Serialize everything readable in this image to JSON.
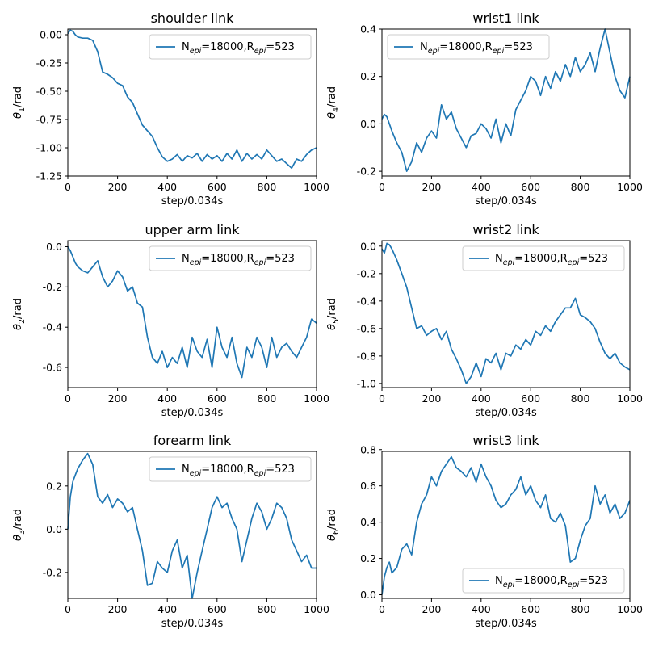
{
  "figure": {
    "background": "#ffffff",
    "line_color": "#1f77b4"
  },
  "chart_data": [
    {
      "type": "line",
      "title": "shoulder link",
      "xlabel": "step/0.034s",
      "ylabel": {
        "base": "θ",
        "sub": "1",
        "suffix": "/rad"
      },
      "xlim": [
        0,
        1000
      ],
      "ylim": [
        -1.25,
        0.05
      ],
      "xticks": [
        0,
        200,
        400,
        600,
        800,
        1000
      ],
      "yticks": [
        0.0,
        -0.25,
        -0.5,
        -0.75,
        -1.0,
        -1.25
      ],
      "ytick_labels": [
        "0.00",
        "-0.25",
        "-0.50",
        "-0.75",
        "-1.00",
        "-1.25"
      ],
      "legend": {
        "location": "upper-right",
        "label": {
          "n": "N",
          "n_sub": "epi",
          "n_val": "=18000,",
          "r": "R",
          "r_sub": "epi",
          "r_val": "=523"
        }
      },
      "series": [
        {
          "label": "N_epi=18000,R_epi=523",
          "color": "#1f77b4",
          "x": [
            0,
            10,
            20,
            30,
            40,
            60,
            80,
            100,
            120,
            140,
            160,
            180,
            200,
            220,
            240,
            260,
            280,
            300,
            320,
            340,
            360,
            380,
            400,
            420,
            440,
            460,
            480,
            500,
            520,
            540,
            560,
            580,
            600,
            620,
            640,
            660,
            680,
            700,
            720,
            740,
            760,
            780,
            800,
            820,
            840,
            860,
            880,
            900,
            920,
            940,
            960,
            980,
            1000
          ],
          "y": [
            0.01,
            0.04,
            0.03,
            0.0,
            -0.02,
            -0.03,
            -0.03,
            -0.05,
            -0.15,
            -0.33,
            -0.35,
            -0.38,
            -0.43,
            -0.45,
            -0.55,
            -0.6,
            -0.7,
            -0.8,
            -0.85,
            -0.9,
            -1.0,
            -1.08,
            -1.12,
            -1.1,
            -1.06,
            -1.12,
            -1.07,
            -1.09,
            -1.05,
            -1.12,
            -1.06,
            -1.1,
            -1.07,
            -1.12,
            -1.05,
            -1.1,
            -1.02,
            -1.12,
            -1.05,
            -1.1,
            -1.06,
            -1.1,
            -1.02,
            -1.07,
            -1.12,
            -1.1,
            -1.14,
            -1.18,
            -1.1,
            -1.12,
            -1.06,
            -1.02,
            -1.0
          ]
        }
      ]
    },
    {
      "type": "line",
      "title": "wrist1 link",
      "xlabel": "step/0.034s",
      "ylabel": {
        "base": "θ",
        "sub": "4",
        "suffix": "/rad"
      },
      "xlim": [
        0,
        1000
      ],
      "ylim": [
        -0.22,
        0.4
      ],
      "xticks": [
        0,
        200,
        400,
        600,
        800,
        1000
      ],
      "yticks": [
        0.4,
        0.2,
        0.0,
        -0.2
      ],
      "ytick_labels": [
        "0.4",
        "0.2",
        "0.0",
        "-0.2"
      ],
      "legend": {
        "location": "upper-left",
        "label": {
          "n": "N",
          "n_sub": "epi",
          "n_val": "=18000,",
          "r": "R",
          "r_sub": "epi",
          "r_val": "=523"
        }
      },
      "series": [
        {
          "label": "N_epi=18000,R_epi=523",
          "color": "#1f77b4",
          "x": [
            0,
            10,
            20,
            30,
            40,
            60,
            80,
            100,
            120,
            140,
            160,
            180,
            200,
            220,
            240,
            260,
            280,
            300,
            320,
            340,
            360,
            380,
            400,
            420,
            440,
            460,
            480,
            500,
            520,
            540,
            560,
            580,
            600,
            620,
            640,
            660,
            680,
            700,
            720,
            740,
            760,
            780,
            800,
            820,
            840,
            860,
            880,
            900,
            920,
            940,
            960,
            980,
            1000
          ],
          "y": [
            0.02,
            0.04,
            0.03,
            0.0,
            -0.03,
            -0.08,
            -0.12,
            -0.2,
            -0.16,
            -0.08,
            -0.12,
            -0.06,
            -0.03,
            -0.06,
            0.08,
            0.02,
            0.05,
            -0.02,
            -0.06,
            -0.1,
            -0.05,
            -0.04,
            0.0,
            -0.02,
            -0.06,
            0.02,
            -0.08,
            0.0,
            -0.05,
            0.06,
            0.1,
            0.14,
            0.2,
            0.18,
            0.12,
            0.2,
            0.15,
            0.22,
            0.18,
            0.25,
            0.2,
            0.28,
            0.22,
            0.25,
            0.3,
            0.22,
            0.32,
            0.4,
            0.3,
            0.2,
            0.14,
            0.11,
            0.2
          ]
        }
      ]
    },
    {
      "type": "line",
      "title": "upper arm link",
      "xlabel": "step/0.034s",
      "ylabel": {
        "base": "θ",
        "sub": "2",
        "suffix": "/rad"
      },
      "xlim": [
        0,
        1000
      ],
      "ylim": [
        -0.7,
        0.03
      ],
      "xticks": [
        0,
        200,
        400,
        600,
        800,
        1000
      ],
      "yticks": [
        0.0,
        -0.2,
        -0.4,
        -0.6
      ],
      "ytick_labels": [
        "0.0",
        "-0.2",
        "-0.4",
        "-0.6"
      ],
      "legend": {
        "location": "upper-right",
        "label": {
          "n": "N",
          "n_sub": "epi",
          "n_val": "=18000,",
          "r": "R",
          "r_sub": "epi",
          "r_val": "=523"
        }
      },
      "series": [
        {
          "label": "N_epi=18000,R_epi=523",
          "color": "#1f77b4",
          "x": [
            0,
            10,
            20,
            30,
            40,
            60,
            80,
            100,
            120,
            140,
            160,
            180,
            200,
            220,
            240,
            260,
            280,
            300,
            320,
            340,
            360,
            380,
            400,
            420,
            440,
            460,
            480,
            500,
            520,
            540,
            560,
            580,
            600,
            620,
            640,
            660,
            680,
            700,
            720,
            740,
            760,
            780,
            800,
            820,
            840,
            860,
            880,
            900,
            920,
            940,
            960,
            980,
            1000
          ],
          "y": [
            0.0,
            -0.02,
            -0.05,
            -0.08,
            -0.1,
            -0.12,
            -0.13,
            -0.1,
            -0.07,
            -0.15,
            -0.2,
            -0.17,
            -0.12,
            -0.15,
            -0.22,
            -0.2,
            -0.28,
            -0.3,
            -0.45,
            -0.55,
            -0.58,
            -0.52,
            -0.6,
            -0.55,
            -0.58,
            -0.5,
            -0.6,
            -0.45,
            -0.52,
            -0.55,
            -0.46,
            -0.6,
            -0.4,
            -0.5,
            -0.55,
            -0.45,
            -0.58,
            -0.65,
            -0.5,
            -0.55,
            -0.45,
            -0.5,
            -0.6,
            -0.45,
            -0.55,
            -0.5,
            -0.48,
            -0.52,
            -0.55,
            -0.5,
            -0.45,
            -0.36,
            -0.38
          ]
        }
      ]
    },
    {
      "type": "line",
      "title": "wrist2 link",
      "xlabel": "step/0.034s",
      "ylabel": {
        "base": "θ",
        "sub": "5",
        "suffix": "/rad"
      },
      "xlim": [
        0,
        1000
      ],
      "ylim": [
        -1.03,
        0.04
      ],
      "xticks": [
        0,
        200,
        400,
        600,
        800,
        1000
      ],
      "yticks": [
        0.0,
        -0.2,
        -0.4,
        -0.6,
        -0.8,
        -1.0
      ],
      "ytick_labels": [
        "0.0",
        "-0.2",
        "-0.4",
        "-0.6",
        "-0.8",
        "-1.0"
      ],
      "legend": {
        "location": "upper-right",
        "label": {
          "n": "N",
          "n_sub": "epi",
          "n_val": "=18000,",
          "r": "R",
          "r_sub": "epi",
          "r_val": "=523"
        }
      },
      "series": [
        {
          "label": "N_epi=18000,R_epi=523",
          "color": "#1f77b4",
          "x": [
            0,
            10,
            20,
            30,
            40,
            60,
            80,
            100,
            120,
            140,
            160,
            180,
            200,
            220,
            240,
            260,
            280,
            300,
            320,
            340,
            360,
            380,
            400,
            420,
            440,
            460,
            480,
            500,
            520,
            540,
            560,
            580,
            600,
            620,
            640,
            660,
            680,
            700,
            720,
            740,
            760,
            780,
            800,
            820,
            840,
            860,
            880,
            900,
            920,
            940,
            960,
            980,
            1000
          ],
          "y": [
            -0.02,
            -0.05,
            0.02,
            0.01,
            -0.02,
            -0.1,
            -0.2,
            -0.3,
            -0.45,
            -0.6,
            -0.58,
            -0.65,
            -0.62,
            -0.6,
            -0.68,
            -0.62,
            -0.75,
            -0.82,
            -0.9,
            -1.0,
            -0.95,
            -0.85,
            -0.95,
            -0.82,
            -0.85,
            -0.78,
            -0.9,
            -0.78,
            -0.8,
            -0.72,
            -0.75,
            -0.68,
            -0.72,
            -0.62,
            -0.65,
            -0.58,
            -0.62,
            -0.55,
            -0.5,
            -0.45,
            -0.45,
            -0.38,
            -0.5,
            -0.52,
            -0.55,
            -0.6,
            -0.7,
            -0.78,
            -0.82,
            -0.78,
            -0.85,
            -0.88,
            -0.9
          ]
        }
      ]
    },
    {
      "type": "line",
      "title": "forearm link",
      "xlabel": "step/0.034s",
      "ylabel": {
        "base": "θ",
        "sub": "3",
        "suffix": "/rad"
      },
      "xlim": [
        0,
        1000
      ],
      "ylim": [
        -0.32,
        0.36
      ],
      "xticks": [
        0,
        200,
        400,
        600,
        800,
        1000
      ],
      "yticks": [
        0.2,
        0.0,
        -0.2
      ],
      "ytick_labels": [
        "0.2",
        "0.0",
        "-0.2"
      ],
      "legend": {
        "location": "upper-right",
        "label": {
          "n": "N",
          "n_sub": "epi",
          "n_val": "=18000,",
          "r": "R",
          "r_sub": "epi",
          "r_val": "=523"
        }
      },
      "series": [
        {
          "label": "N_epi=18000,R_epi=523",
          "color": "#1f77b4",
          "x": [
            0,
            10,
            20,
            30,
            40,
            60,
            80,
            100,
            120,
            140,
            160,
            180,
            200,
            220,
            240,
            260,
            280,
            300,
            320,
            340,
            360,
            380,
            400,
            420,
            440,
            460,
            480,
            500,
            520,
            540,
            560,
            580,
            600,
            620,
            640,
            660,
            680,
            700,
            720,
            740,
            760,
            780,
            800,
            820,
            840,
            860,
            880,
            900,
            920,
            940,
            960,
            980,
            1000
          ],
          "y": [
            0.0,
            0.15,
            0.22,
            0.25,
            0.28,
            0.32,
            0.35,
            0.3,
            0.15,
            0.12,
            0.16,
            0.1,
            0.14,
            0.12,
            0.08,
            0.1,
            0.0,
            -0.1,
            -0.26,
            -0.25,
            -0.15,
            -0.18,
            -0.2,
            -0.1,
            -0.05,
            -0.18,
            -0.12,
            -0.32,
            -0.2,
            -0.1,
            0.0,
            0.1,
            0.15,
            0.1,
            0.12,
            0.05,
            0.0,
            -0.15,
            -0.05,
            0.05,
            0.12,
            0.08,
            0.0,
            0.05,
            0.12,
            0.1,
            0.05,
            -0.05,
            -0.1,
            -0.15,
            -0.12,
            -0.18,
            -0.18
          ]
        }
      ]
    },
    {
      "type": "line",
      "title": "wrist3 link",
      "xlabel": "step/0.034s",
      "ylabel": {
        "base": "θ",
        "sub": "6",
        "suffix": "/rad"
      },
      "xlim": [
        0,
        1000
      ],
      "ylim": [
        -0.02,
        0.79
      ],
      "xticks": [
        0,
        200,
        400,
        600,
        800,
        1000
      ],
      "yticks": [
        0.8,
        0.6,
        0.4,
        0.2,
        0.0
      ],
      "ytick_labels": [
        "0.8",
        "0.6",
        "0.4",
        "0.2",
        "0.0"
      ],
      "legend": {
        "location": "lower-right",
        "label": {
          "n": "N",
          "n_sub": "epi",
          "n_val": "=18000,",
          "r": "R",
          "r_sub": "epi",
          "r_val": "=523"
        }
      },
      "series": [
        {
          "label": "N_epi=18000,R_epi=523",
          "color": "#1f77b4",
          "x": [
            0,
            10,
            20,
            30,
            40,
            60,
            80,
            100,
            120,
            140,
            160,
            180,
            200,
            220,
            240,
            260,
            280,
            300,
            320,
            340,
            360,
            380,
            400,
            420,
            440,
            460,
            480,
            500,
            520,
            540,
            560,
            580,
            600,
            620,
            640,
            660,
            680,
            700,
            720,
            740,
            760,
            780,
            800,
            820,
            840,
            860,
            880,
            900,
            920,
            940,
            960,
            980,
            1000
          ],
          "y": [
            0.0,
            0.1,
            0.15,
            0.18,
            0.12,
            0.15,
            0.25,
            0.28,
            0.22,
            0.4,
            0.5,
            0.55,
            0.65,
            0.6,
            0.68,
            0.72,
            0.76,
            0.7,
            0.68,
            0.65,
            0.7,
            0.62,
            0.72,
            0.65,
            0.6,
            0.52,
            0.48,
            0.5,
            0.55,
            0.58,
            0.65,
            0.55,
            0.6,
            0.52,
            0.48,
            0.55,
            0.42,
            0.4,
            0.45,
            0.38,
            0.18,
            0.2,
            0.3,
            0.38,
            0.42,
            0.6,
            0.5,
            0.55,
            0.45,
            0.5,
            0.42,
            0.45,
            0.52
          ]
        }
      ]
    }
  ]
}
